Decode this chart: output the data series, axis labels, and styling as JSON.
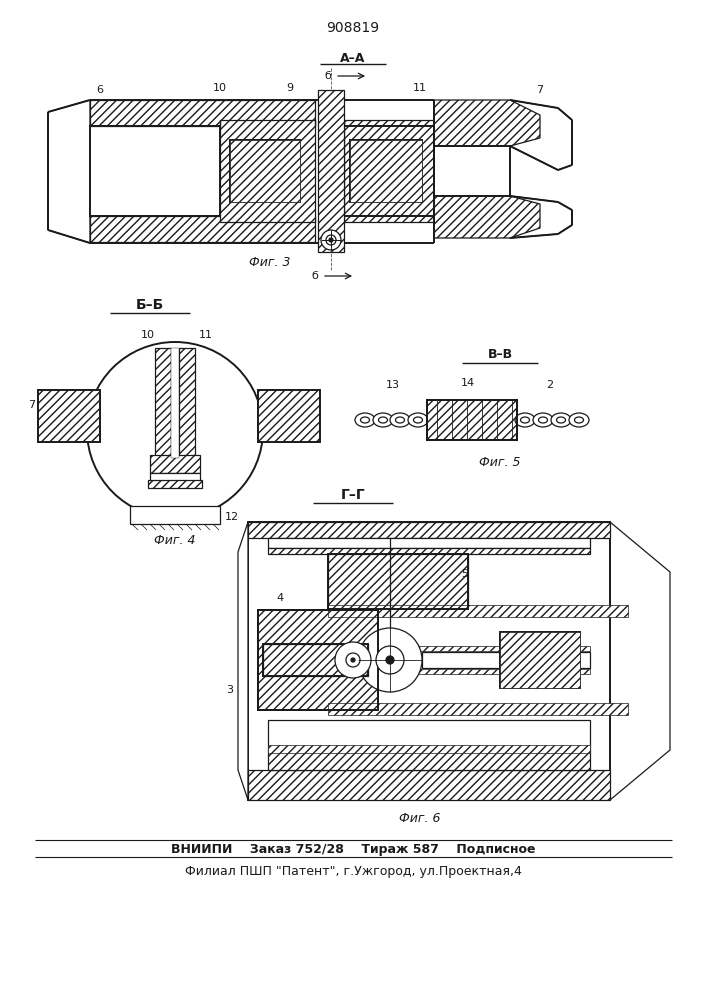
{
  "patent_number": "908819",
  "bg": "#ffffff",
  "lc": "#1a1a1a",
  "bottom_text1": "ВНИИПИ    Заказ 752/28    Тираж 587    Подписное",
  "bottom_text2": "Филиал ПШП \"Патент\", г.Ужгород, ул.Проектная,4"
}
